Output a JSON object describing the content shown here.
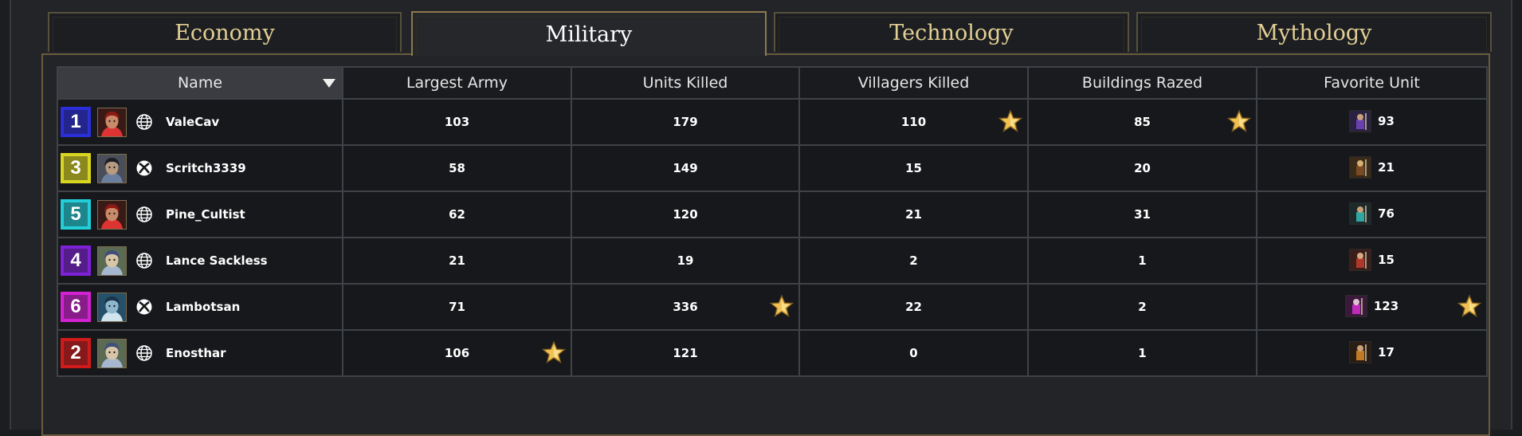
{
  "tabs": [
    {
      "label": "Economy",
      "active": false
    },
    {
      "label": "Military",
      "active": true
    },
    {
      "label": "Technology",
      "active": false
    },
    {
      "label": "Mythology",
      "active": false
    }
  ],
  "columns": {
    "name": "Name",
    "largest_army": "Largest Army",
    "units_killed": "Units Killed",
    "villagers_killed": "Villagers Killed",
    "buildings_razed": "Buildings Razed",
    "favorite_unit": "Favorite Unit"
  },
  "players": [
    {
      "number": "1",
      "color": "#2b2fd8",
      "avatar": "red-warrior",
      "platform": "globe",
      "name": "ValeCav",
      "largest_army": "103",
      "units_killed": "179",
      "villagers_killed": "110",
      "buildings_razed": "85",
      "favorite_unit": "93",
      "unit_icon": "purple-unit"
    },
    {
      "number": "3",
      "color": "#d9d622",
      "avatar": "dark-hat",
      "platform": "xbox",
      "name": "Scritch3339",
      "largest_army": "58",
      "units_killed": "149",
      "villagers_killed": "15",
      "buildings_razed": "20",
      "favorite_unit": "21",
      "unit_icon": "horse-unit"
    },
    {
      "number": "5",
      "color": "#22cfd8",
      "avatar": "red-warrior",
      "platform": "globe",
      "name": "Pine_Cultist",
      "largest_army": "62",
      "units_killed": "120",
      "villagers_killed": "21",
      "buildings_razed": "31",
      "favorite_unit": "76",
      "unit_icon": "teal-unit"
    },
    {
      "number": "4",
      "color": "#7d22d6",
      "avatar": "pale-face",
      "platform": "globe",
      "name": "Lance Sackless",
      "largest_army": "21",
      "units_killed": "19",
      "villagers_killed": "2",
      "buildings_razed": "1",
      "favorite_unit": "15",
      "unit_icon": "red-unit"
    },
    {
      "number": "6",
      "color": "#d322d3",
      "avatar": "blue-face",
      "platform": "xbox",
      "name": "Lambotsan",
      "largest_army": "71",
      "units_killed": "336",
      "villagers_killed": "22",
      "buildings_razed": "2",
      "favorite_unit": "123",
      "unit_icon": "magenta-unit"
    },
    {
      "number": "2",
      "color": "#d11b1b",
      "avatar": "pale-face",
      "platform": "globe",
      "name": "Enosthar",
      "largest_army": "106",
      "units_killed": "121",
      "villagers_killed": "0",
      "buildings_razed": "1",
      "favorite_unit": "17",
      "unit_icon": "orange-unit"
    }
  ],
  "highlights": {
    "largest_army": 5,
    "units_killed": 4,
    "villagers_killed": 0,
    "buildings_razed": 0,
    "favorite_unit": 4
  },
  "colors": {
    "accent_gold": "#e3cf95",
    "highlight_cell": "#565334",
    "star": "#f0c050"
  }
}
